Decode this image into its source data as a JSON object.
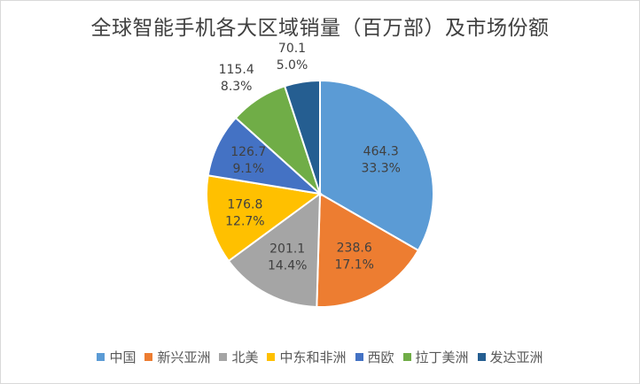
{
  "chart_data": {
    "type": "pie",
    "title": "全球智能手机各大区域销量（百万部）及市场份额",
    "categories": [
      "中国",
      "新兴亚洲",
      "北美",
      "中东和非洲",
      "西欧",
      "拉丁美洲",
      "发达亚洲"
    ],
    "values": [
      464.3,
      238.6,
      201.1,
      176.8,
      126.7,
      115.4,
      70.1
    ],
    "percent_labels": [
      "33.3%",
      "17.1%",
      "14.4%",
      "12.7%",
      "9.1%",
      "8.3%",
      "5.0%"
    ],
    "value_labels": [
      "464.3",
      "238.6",
      "201.1",
      "176.8",
      "126.7",
      "115.4",
      "70.1"
    ],
    "colors": [
      "#5b9bd5",
      "#ed7d31",
      "#a5a5a5",
      "#ffc000",
      "#4472c4",
      "#70ad47",
      "#255e91"
    ],
    "legend_position": "bottom"
  }
}
